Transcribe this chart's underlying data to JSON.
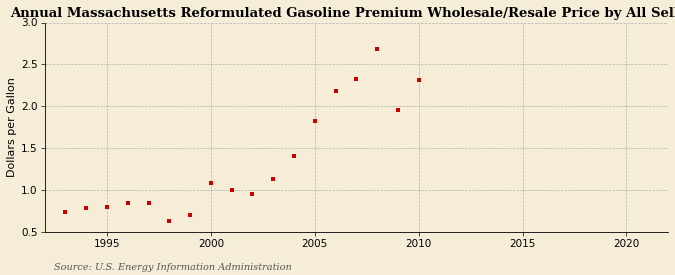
{
  "title": "Annual Massachusetts Reformulated Gasoline Premium Wholesale/Resale Price by All Sellers",
  "ylabel": "Dollars per Gallon",
  "source": "Source: U.S. Energy Information Administration",
  "years": [
    1993,
    1994,
    1995,
    1996,
    1997,
    1998,
    1999,
    2000,
    2001,
    2002,
    2003,
    2004,
    2005,
    2006,
    2007,
    2008,
    2009,
    2010
  ],
  "values": [
    0.74,
    0.78,
    0.8,
    0.84,
    0.84,
    0.63,
    0.7,
    1.08,
    1.0,
    0.95,
    1.13,
    1.4,
    1.82,
    2.18,
    2.33,
    2.68,
    1.96,
    2.31
  ],
  "marker_color": "#CC0000",
  "background_color": "#F5EDD8",
  "grid_color": "#999999",
  "xlim": [
    1992,
    2022
  ],
  "ylim": [
    0.5,
    3.0
  ],
  "xticks": [
    1995,
    2000,
    2005,
    2010,
    2015,
    2020
  ],
  "yticks": [
    0.5,
    1.0,
    1.5,
    2.0,
    2.5,
    3.0
  ],
  "title_fontsize": 9.5,
  "label_fontsize": 8.0,
  "tick_fontsize": 7.5,
  "source_fontsize": 7.0
}
